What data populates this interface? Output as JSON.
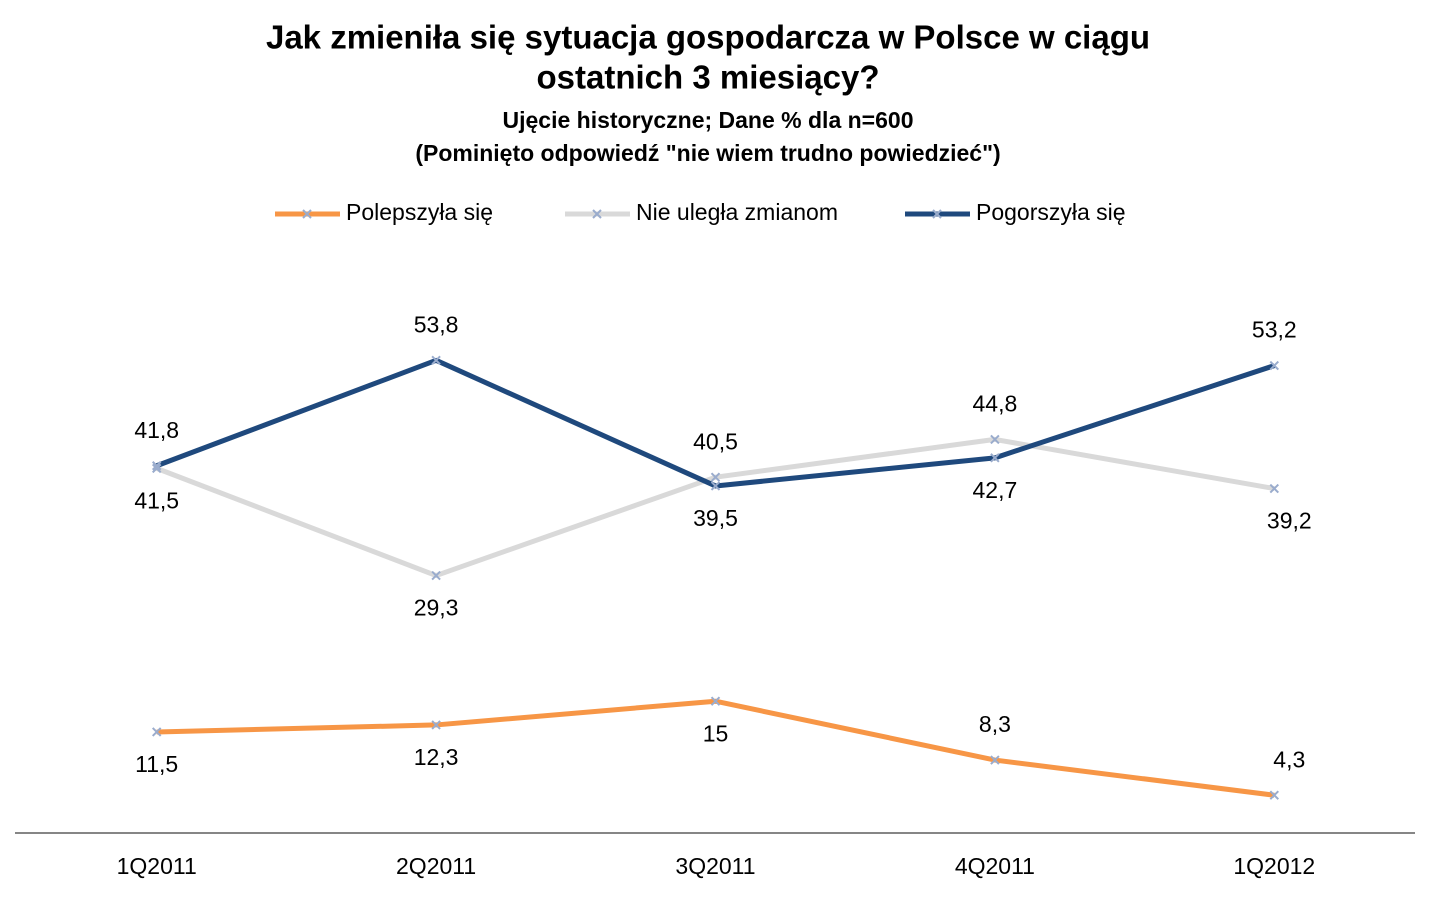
{
  "chart_data": {
    "type": "line",
    "title": [
      "Jak zmieniła się sytuacja gospodarcza  w Polsce w ciągu",
      "ostatnich 3 miesiący?"
    ],
    "subtitle": [
      "Ujęcie historyczne; Dane % dla  n=600",
      "(Pominięto odpowiedź \"nie wiem trudno powiedzieć\")"
    ],
    "categories": [
      "1Q2011",
      "2Q2011",
      "3Q2011",
      "4Q2011",
      "1Q2012"
    ],
    "series": [
      {
        "name": "Polepszyła się",
        "color": "#f79646",
        "values": [
          11.5,
          12.3,
          15,
          8.3,
          4.3
        ],
        "value_labels": [
          "11,5",
          "12,3",
          "15",
          "8,3",
          "4,3"
        ]
      },
      {
        "name": "Nie uległa zmianom",
        "color": "#d9d9d9",
        "values": [
          41.5,
          29.3,
          40.5,
          44.8,
          39.2
        ],
        "value_labels": [
          "41,5",
          "29,3",
          "40,5",
          "44,8",
          "39,2"
        ]
      },
      {
        "name": "Pogorszyła się",
        "color": "#1f497d",
        "values": [
          41.8,
          53.8,
          39.5,
          42.7,
          53.2
        ],
        "value_labels": [
          "41,8",
          "53,8",
          "39,5",
          "42,7",
          "53,2"
        ]
      }
    ],
    "ylim": [
      0,
      70
    ],
    "legend": "top"
  }
}
